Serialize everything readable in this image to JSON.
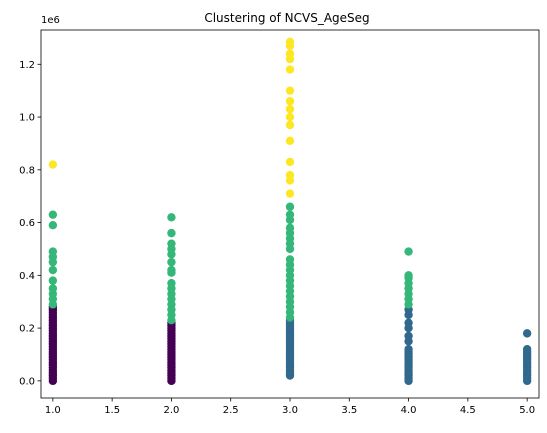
{
  "chart_data": {
    "type": "scatter",
    "title": "Clustering of NCVS_AgeSeg",
    "xlabel": "",
    "ylabel": "",
    "y_offset_label": "1e6",
    "xlim": [
      0.9,
      5.1
    ],
    "ylim": [
      -0.065,
      1.33
    ],
    "grid": false,
    "x_ticks": [
      1.0,
      1.5,
      2.0,
      2.5,
      3.0,
      3.5,
      4.0,
      4.5,
      5.0
    ],
    "x_tick_labels": [
      "1.0",
      "1.5",
      "2.0",
      "2.5",
      "3.0",
      "3.5",
      "4.0",
      "4.5",
      "5.0"
    ],
    "y_ticks": [
      0.0,
      0.2,
      0.4,
      0.6,
      0.8,
      1.0,
      1.2
    ],
    "y_tick_labels": [
      "0.0",
      "0.2",
      "0.4",
      "0.6",
      "0.8",
      "1.0",
      "1.2"
    ],
    "series": [
      {
        "color": "#440154",
        "points": [
          [
            1,
            0.0
          ],
          [
            1,
            0.01
          ],
          [
            1,
            0.02
          ],
          [
            1,
            0.03
          ],
          [
            1,
            0.04
          ],
          [
            1,
            0.05
          ],
          [
            1,
            0.06
          ],
          [
            1,
            0.07
          ],
          [
            1,
            0.08
          ],
          [
            1,
            0.09
          ],
          [
            1,
            0.1
          ],
          [
            1,
            0.11
          ],
          [
            1,
            0.12
          ],
          [
            1,
            0.13
          ],
          [
            1,
            0.14
          ],
          [
            1,
            0.15
          ],
          [
            1,
            0.16
          ],
          [
            1,
            0.17
          ],
          [
            1,
            0.18
          ],
          [
            1,
            0.19
          ],
          [
            1,
            0.2
          ],
          [
            1,
            0.21
          ],
          [
            1,
            0.22
          ],
          [
            1,
            0.23
          ],
          [
            1,
            0.24
          ],
          [
            1,
            0.25
          ],
          [
            1,
            0.26
          ],
          [
            1,
            0.27
          ],
          [
            1,
            0.28
          ],
          [
            2,
            0.0
          ],
          [
            2,
            0.01
          ],
          [
            2,
            0.02
          ],
          [
            2,
            0.03
          ],
          [
            2,
            0.04
          ],
          [
            2,
            0.05
          ],
          [
            2,
            0.06
          ],
          [
            2,
            0.07
          ],
          [
            2,
            0.08
          ],
          [
            2,
            0.09
          ],
          [
            2,
            0.1
          ],
          [
            2,
            0.11
          ],
          [
            2,
            0.12
          ],
          [
            2,
            0.13
          ],
          [
            2,
            0.14
          ],
          [
            2,
            0.15
          ],
          [
            2,
            0.16
          ],
          [
            2,
            0.17
          ],
          [
            2,
            0.18
          ],
          [
            2,
            0.19
          ],
          [
            2,
            0.2
          ],
          [
            2,
            0.21
          ],
          [
            2,
            0.22
          ]
        ]
      },
      {
        "color": "#31688e",
        "points": [
          [
            3,
            0.02
          ],
          [
            3,
            0.03
          ],
          [
            3,
            0.04
          ],
          [
            3,
            0.05
          ],
          [
            3,
            0.06
          ],
          [
            3,
            0.07
          ],
          [
            3,
            0.08
          ],
          [
            3,
            0.09
          ],
          [
            3,
            0.1
          ],
          [
            3,
            0.11
          ],
          [
            3,
            0.12
          ],
          [
            3,
            0.13
          ],
          [
            3,
            0.14
          ],
          [
            3,
            0.15
          ],
          [
            3,
            0.16
          ],
          [
            3,
            0.17
          ],
          [
            3,
            0.18
          ],
          [
            3,
            0.19
          ],
          [
            3,
            0.2
          ],
          [
            3,
            0.21
          ],
          [
            3,
            0.22
          ],
          [
            3,
            0.23
          ],
          [
            4,
            0.0
          ],
          [
            4,
            0.01
          ],
          [
            4,
            0.02
          ],
          [
            4,
            0.03
          ],
          [
            4,
            0.04
          ],
          [
            4,
            0.05
          ],
          [
            4,
            0.06
          ],
          [
            4,
            0.07
          ],
          [
            4,
            0.08
          ],
          [
            4,
            0.09
          ],
          [
            4,
            0.1
          ],
          [
            4,
            0.11
          ],
          [
            4,
            0.12
          ],
          [
            4,
            0.15
          ],
          [
            4,
            0.17
          ],
          [
            4,
            0.2
          ],
          [
            4,
            0.22
          ],
          [
            4,
            0.25
          ],
          [
            4,
            0.27
          ],
          [
            5,
            0.0
          ],
          [
            5,
            0.01
          ],
          [
            5,
            0.02
          ],
          [
            5,
            0.03
          ],
          [
            5,
            0.04
          ],
          [
            5,
            0.05
          ],
          [
            5,
            0.06
          ],
          [
            5,
            0.07
          ],
          [
            5,
            0.08
          ],
          [
            5,
            0.09
          ],
          [
            5,
            0.1
          ],
          [
            5,
            0.11
          ],
          [
            5,
            0.12
          ],
          [
            5,
            0.18
          ]
        ]
      },
      {
        "color": "#35b779",
        "points": [
          [
            1,
            0.29
          ],
          [
            1,
            0.31
          ],
          [
            1,
            0.33
          ],
          [
            1,
            0.35
          ],
          [
            1,
            0.38
          ],
          [
            1,
            0.42
          ],
          [
            1,
            0.45
          ],
          [
            1,
            0.47
          ],
          [
            1,
            0.49
          ],
          [
            1,
            0.59
          ],
          [
            1,
            0.63
          ],
          [
            2,
            0.23
          ],
          [
            2,
            0.25
          ],
          [
            2,
            0.27
          ],
          [
            2,
            0.29
          ],
          [
            2,
            0.31
          ],
          [
            2,
            0.33
          ],
          [
            2,
            0.35
          ],
          [
            2,
            0.37
          ],
          [
            2,
            0.41
          ],
          [
            2,
            0.42
          ],
          [
            2,
            0.45
          ],
          [
            2,
            0.48
          ],
          [
            2,
            0.5
          ],
          [
            2,
            0.52
          ],
          [
            2,
            0.56
          ],
          [
            2,
            0.62
          ],
          [
            3,
            0.24
          ],
          [
            3,
            0.26
          ],
          [
            3,
            0.28
          ],
          [
            3,
            0.3
          ],
          [
            3,
            0.32
          ],
          [
            3,
            0.34
          ],
          [
            3,
            0.36
          ],
          [
            3,
            0.38
          ],
          [
            3,
            0.4
          ],
          [
            3,
            0.42
          ],
          [
            3,
            0.44
          ],
          [
            3,
            0.46
          ],
          [
            3,
            0.5
          ],
          [
            3,
            0.52
          ],
          [
            3,
            0.54
          ],
          [
            3,
            0.56
          ],
          [
            3,
            0.58
          ],
          [
            3,
            0.61
          ],
          [
            3,
            0.63
          ],
          [
            3,
            0.66
          ],
          [
            4,
            0.29
          ],
          [
            4,
            0.31
          ],
          [
            4,
            0.33
          ],
          [
            4,
            0.35
          ],
          [
            4,
            0.37
          ],
          [
            4,
            0.39
          ],
          [
            4,
            0.4
          ],
          [
            4,
            0.49
          ]
        ]
      },
      {
        "color": "#fde725",
        "points": [
          [
            1,
            0.82
          ],
          [
            3,
            0.71
          ],
          [
            3,
            0.76
          ],
          [
            3,
            0.78
          ],
          [
            3,
            0.83
          ],
          [
            3,
            0.91
          ],
          [
            3,
            0.97
          ],
          [
            3,
            1.0
          ],
          [
            3,
            1.03
          ],
          [
            3,
            1.06
          ],
          [
            3,
            1.1
          ],
          [
            3,
            1.18
          ],
          [
            3,
            1.22
          ],
          [
            3,
            1.24
          ],
          [
            3,
            1.27
          ],
          [
            3,
            1.285
          ]
        ]
      }
    ]
  }
}
